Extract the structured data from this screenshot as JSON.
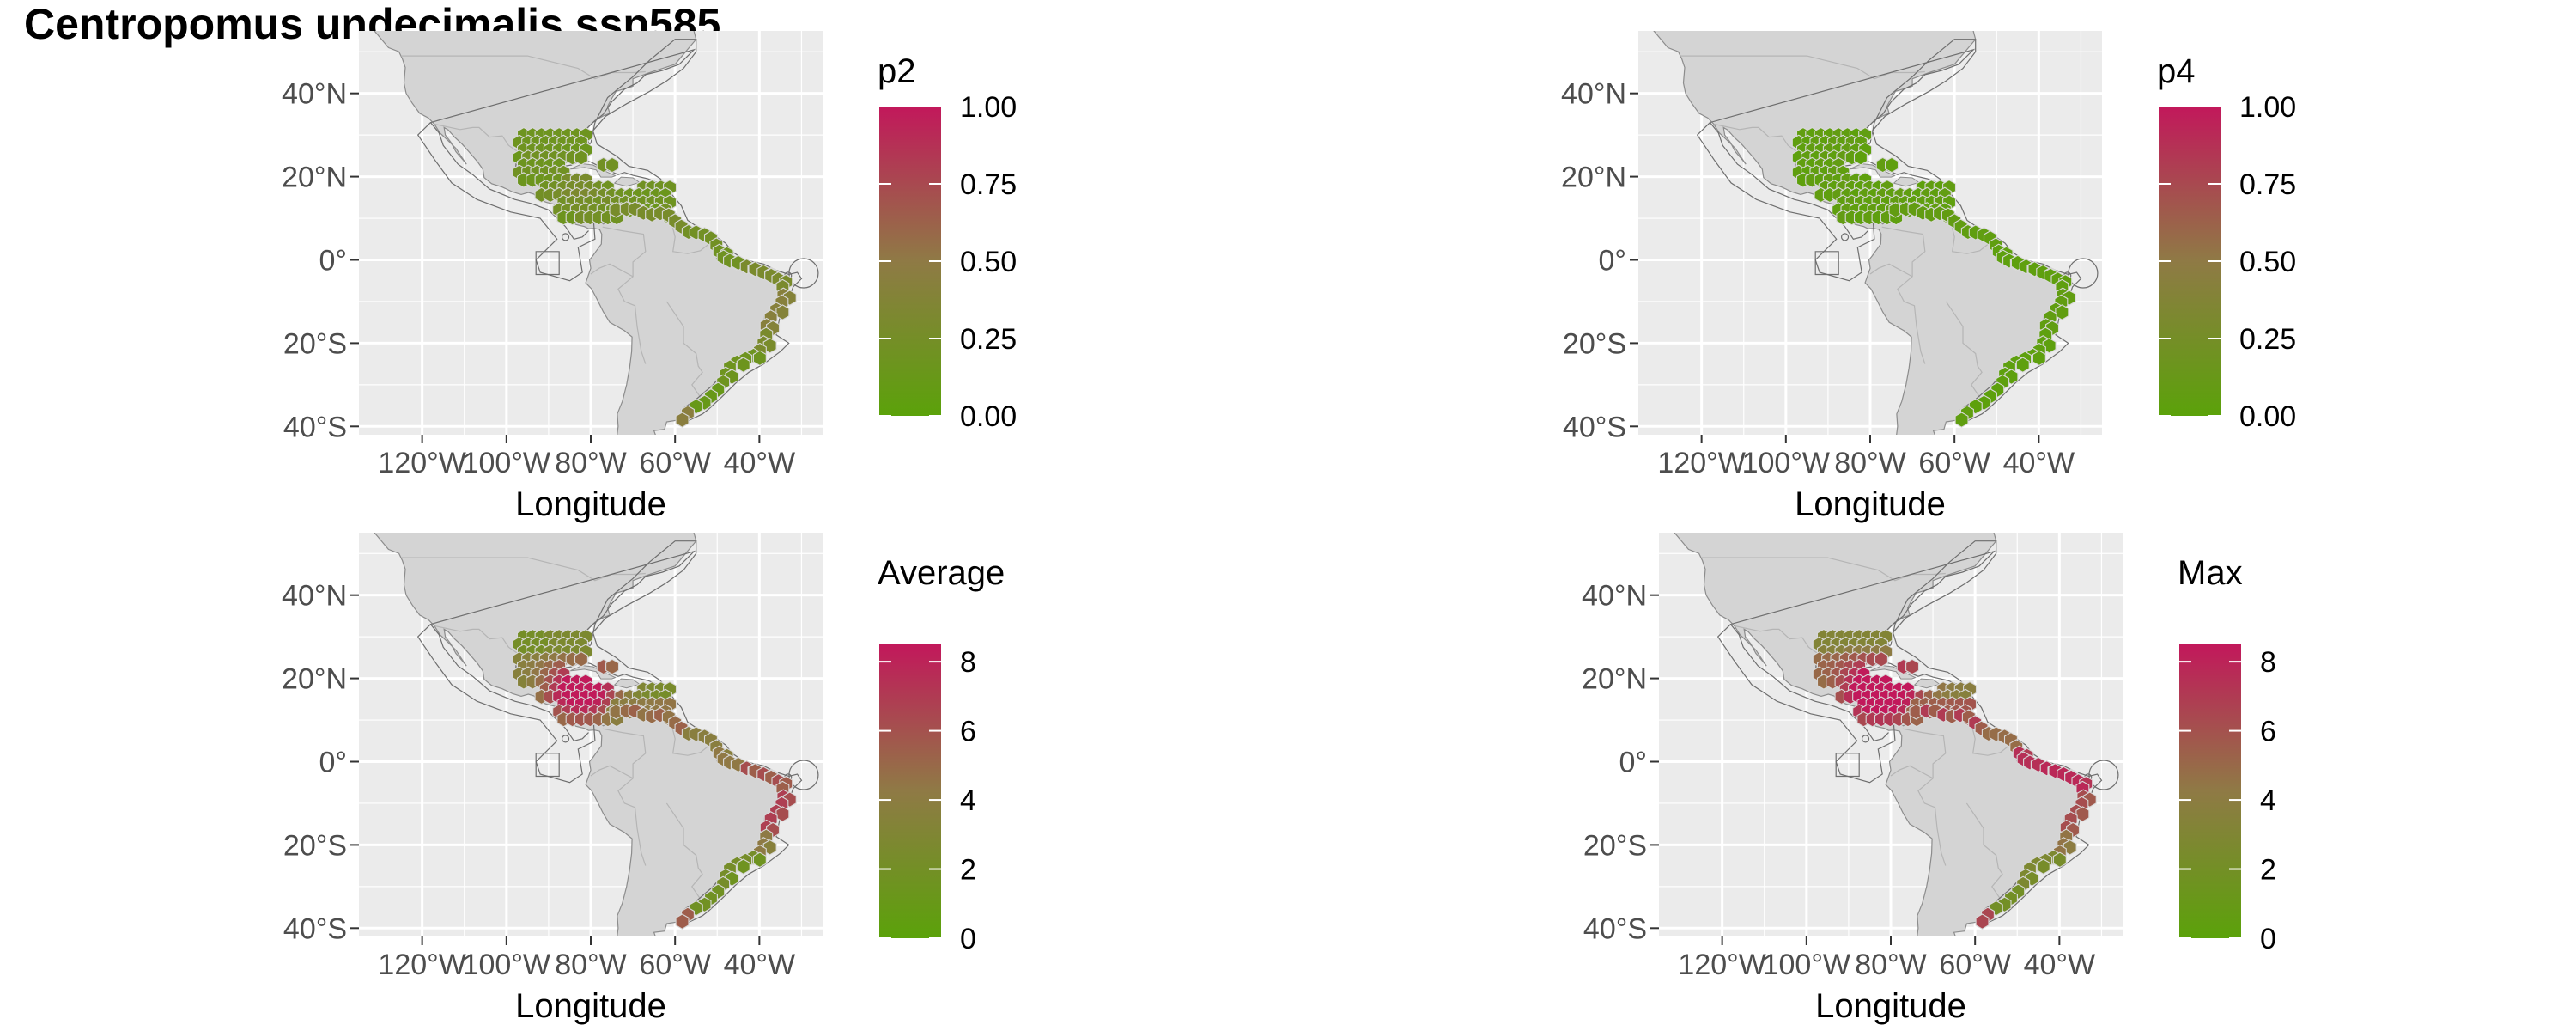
{
  "title": "Centropomus undecimalis ssp585",
  "colors": {
    "low": "#5ba20a",
    "mid": "#8f7a45",
    "high": "#c2185b",
    "land": "#d4d4d4",
    "panel": "#ebebeb",
    "grid": "#ffffff"
  },
  "chart_data": [
    {
      "type": "map",
      "legend_title": "p2",
      "legend_ticks": [
        "1.00",
        "0.75",
        "0.50",
        "0.25",
        "0.00"
      ],
      "scale_range": [
        0,
        1
      ],
      "xlabel": "Longitude",
      "ylabel": "",
      "x_ticks": [
        "120°W",
        "100°W",
        "80°W",
        "60°W",
        "40°W"
      ],
      "y_ticks": [
        "40°N",
        "20°N",
        "0°",
        "20°S",
        "40°S"
      ],
      "xlim": [
        -135,
        -25
      ],
      "ylim": [
        -42,
        55
      ]
    },
    {
      "type": "map",
      "legend_title": "p4",
      "legend_ticks": [
        "1.00",
        "0.75",
        "0.50",
        "0.25",
        "0.00"
      ],
      "scale_range": [
        0,
        1
      ],
      "xlabel": "Longitude",
      "ylabel": "",
      "x_ticks": [
        "120°W",
        "100°W",
        "80°W",
        "60°W",
        "40°W"
      ],
      "y_ticks": [
        "40°N",
        "20°N",
        "0°",
        "20°S",
        "40°S"
      ],
      "xlim": [
        -135,
        -25
      ],
      "ylim": [
        -42,
        55
      ]
    },
    {
      "type": "map",
      "legend_title": "Average",
      "legend_ticks": [
        "8",
        "6",
        "4",
        "2",
        "0"
      ],
      "scale_range": [
        0,
        8.5
      ],
      "xlabel": "Longitude",
      "ylabel": "",
      "x_ticks": [
        "120°W",
        "100°W",
        "80°W",
        "60°W",
        "40°W"
      ],
      "y_ticks": [
        "40°N",
        "20°N",
        "0°",
        "20°S",
        "40°S"
      ],
      "xlim": [
        -135,
        -25
      ],
      "ylim": [
        -42,
        55
      ]
    },
    {
      "type": "map",
      "legend_title": "Max",
      "legend_ticks": [
        "8",
        "6",
        "4",
        "2",
        "0"
      ],
      "scale_range": [
        0,
        8.5
      ],
      "xlabel": "Longitude",
      "ylabel": "",
      "x_ticks": [
        "120°W",
        "100°W",
        "80°W",
        "60°W",
        "40°W"
      ],
      "y_ticks": [
        "40°N",
        "20°N",
        "0°",
        "20°S",
        "40°S"
      ],
      "xlim": [
        -135,
        -25
      ],
      "ylim": [
        -42,
        55
      ]
    }
  ]
}
